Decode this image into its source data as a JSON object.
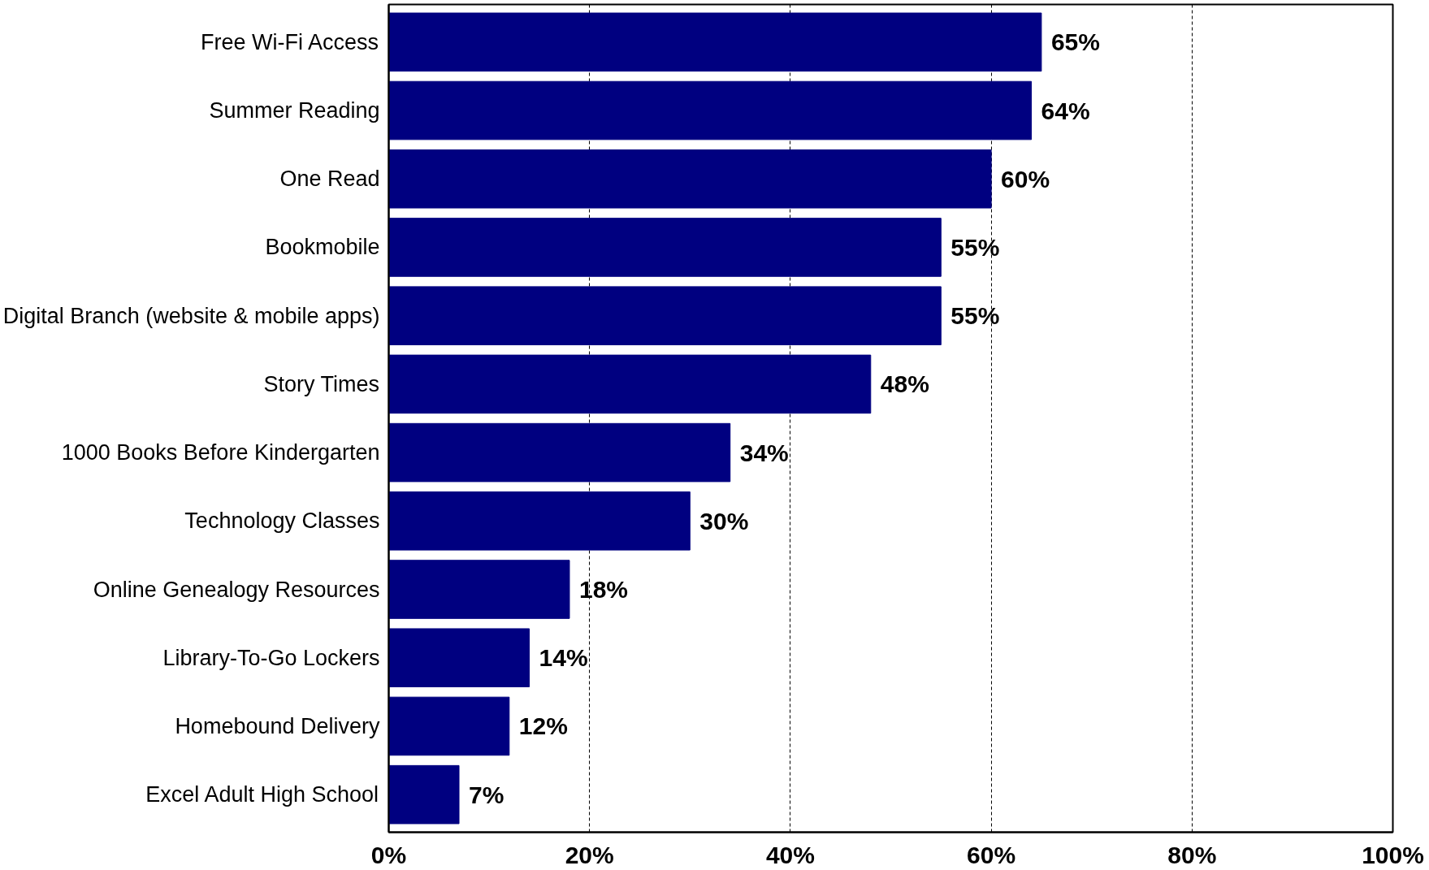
{
  "chart_data": {
    "type": "bar",
    "orientation": "horizontal",
    "categories": [
      "Free Wi-Fi Access",
      "Summer Reading",
      "One Read",
      "Bookmobile",
      "Digital Branch (website & mobile apps)",
      "Story Times",
      "1000 Books Before Kindergarten",
      "Technology Classes",
      "Online Genealogy Resources",
      "Library-To-Go Lockers",
      "Homebound Delivery",
      "Excel Adult High School"
    ],
    "values": [
      65,
      64,
      60,
      55,
      55,
      48,
      34,
      30,
      18,
      14,
      12,
      7
    ],
    "value_labels": [
      "65%",
      "64%",
      "60%",
      "55%",
      "55%",
      "48%",
      "34%",
      "30%",
      "18%",
      "14%",
      "12%",
      "7%"
    ],
    "color": "#000080",
    "xlim": [
      0,
      100
    ],
    "xticks": [
      {
        "value": 0,
        "label": "0%"
      },
      {
        "value": 20,
        "label": "20%"
      },
      {
        "value": 40,
        "label": "40%"
      },
      {
        "value": 60,
        "label": "60%"
      },
      {
        "value": 80,
        "label": "80%"
      },
      {
        "value": 100,
        "label": "100%"
      }
    ],
    "grid": "x"
  }
}
